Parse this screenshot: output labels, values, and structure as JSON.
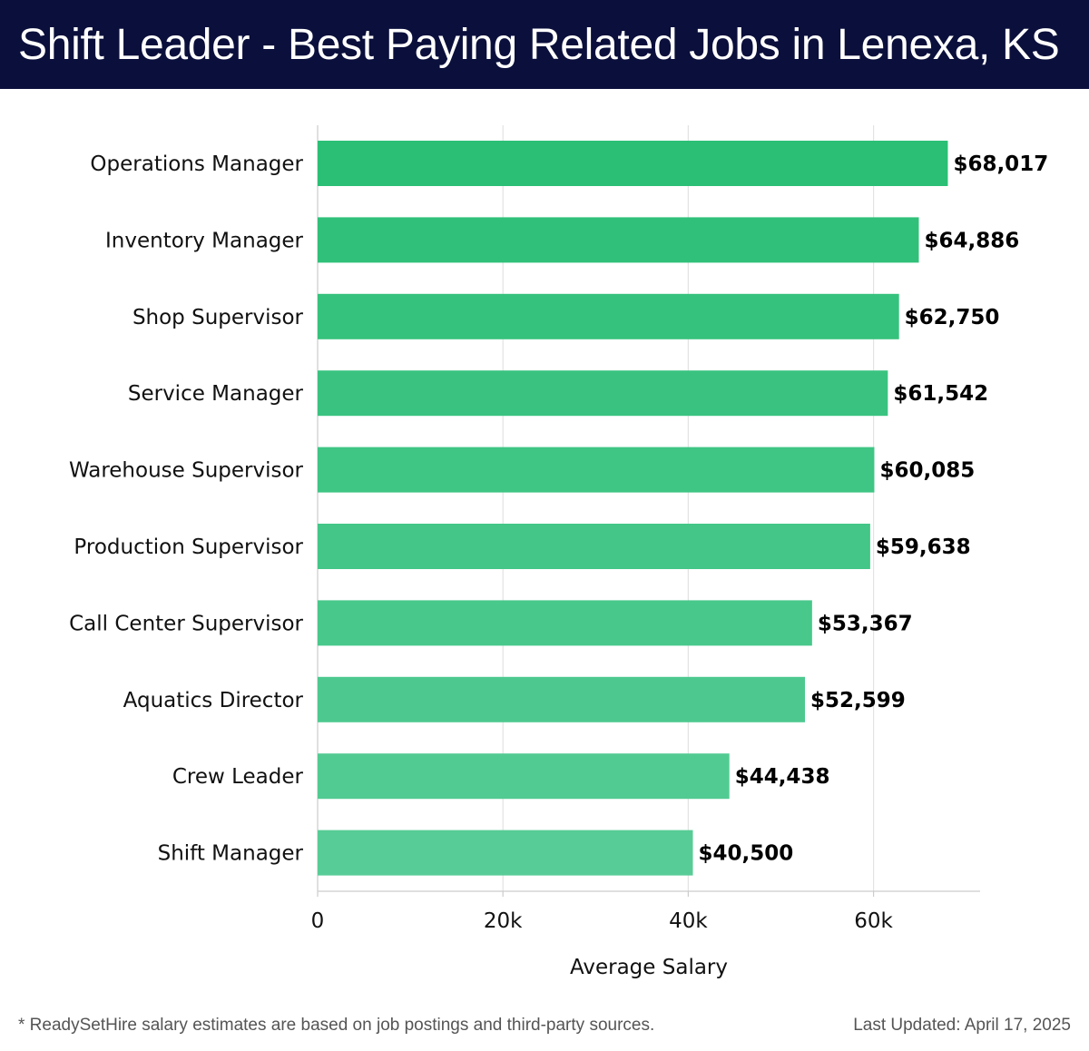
{
  "header": {
    "title": "Shift Leader - Best Paying Related Jobs in Lenexa, KS"
  },
  "footer": {
    "note": "* ReadySetHire salary estimates are based on job postings and third-party sources.",
    "updated": "Last Updated: April 17, 2025"
  },
  "colors": {
    "header_bg": "#0b0f3b",
    "bar_top": "#2bbf75",
    "bar_bottom": "#57cc96",
    "grid": "#e3e3e3"
  },
  "chart_data": {
    "type": "bar",
    "orientation": "horizontal",
    "title": "Shift Leader - Best Paying Related Jobs in Lenexa, KS",
    "xlabel": "Average Salary",
    "ylabel": "",
    "categories": [
      "Operations Manager",
      "Inventory Manager",
      "Shop Supervisor",
      "Service Manager",
      "Warehouse Supervisor",
      "Production Supervisor",
      "Call Center Supervisor",
      "Aquatics Director",
      "Crew Leader",
      "Shift Manager"
    ],
    "values": [
      68017,
      64886,
      62750,
      61542,
      60085,
      59638,
      53367,
      52599,
      44438,
      40500
    ],
    "value_labels": [
      "$68,017",
      "$64,886",
      "$62,750",
      "$61,542",
      "$60,085",
      "$59,638",
      "$53,367",
      "$52,599",
      "$44,438",
      "$40,500"
    ],
    "xlim": [
      0,
      71500
    ],
    "xticks": [
      0,
      20000,
      40000,
      60000
    ],
    "xtick_labels": [
      "0",
      "20k",
      "40k",
      "60k"
    ],
    "grid": true,
    "legend": "none"
  }
}
